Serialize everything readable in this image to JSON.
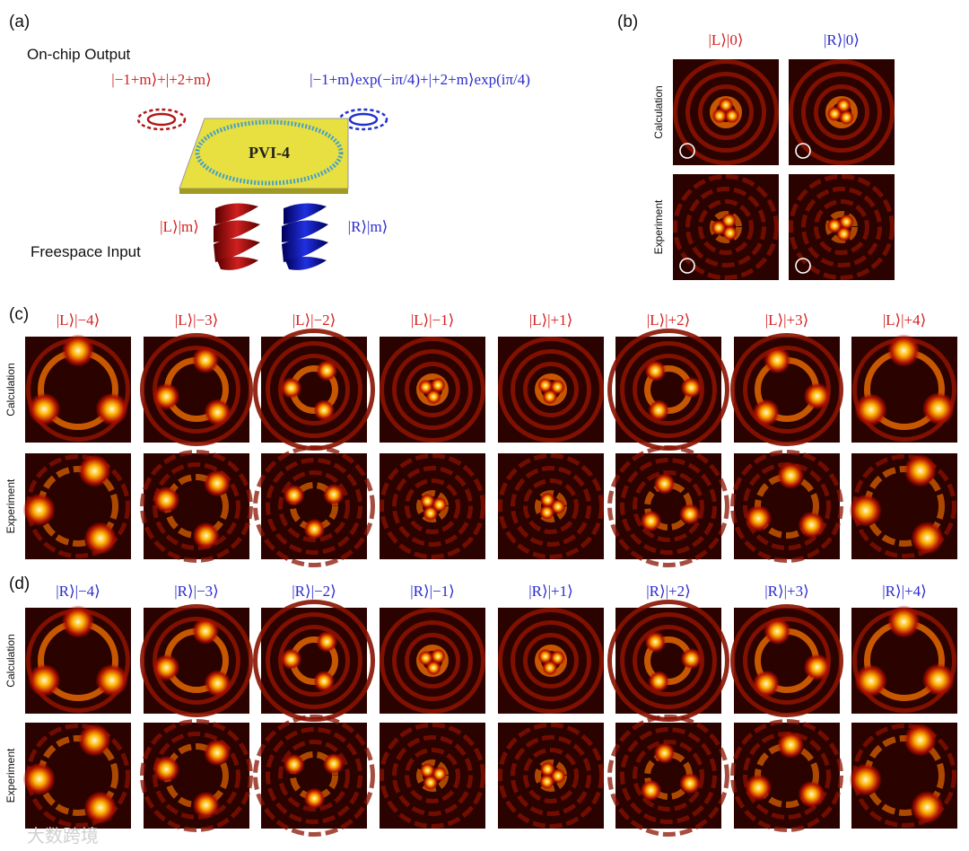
{
  "panels": {
    "a": {
      "label": "(a)",
      "output_title": "On-chip Output",
      "output_left": "|−1+m⟩+|+2+m⟩",
      "output_right": "|−1+m⟩exp(−iπ/4)+|+2+m⟩exp(iπ/4)",
      "chip": "PVI-4",
      "input_title": "Freespace Input",
      "input_left": "|L⟩|m⟩",
      "input_right": "|R⟩|m⟩"
    },
    "b": {
      "label": "(b)",
      "columns": [
        "|L⟩|0⟩",
        "|R⟩|0⟩"
      ],
      "rows": [
        "Calculation",
        "Experiment"
      ]
    },
    "c": {
      "label": "(c)",
      "columns": [
        "|L⟩|−4⟩",
        "|L⟩|−3⟩",
        "|L⟩|−2⟩",
        "|L⟩|−1⟩",
        "|L⟩|+1⟩",
        "|L⟩|+2⟩",
        "|L⟩|+3⟩",
        "|L⟩|+4⟩"
      ],
      "rows": [
        "Calculation",
        "Experiment"
      ]
    },
    "d": {
      "label": "(d)",
      "columns": [
        "|R⟩|−4⟩",
        "|R⟩|−3⟩",
        "|R⟩|−2⟩",
        "|R⟩|−1⟩",
        "|R⟩|+1⟩",
        "|R⟩|+2⟩",
        "|R⟩|+3⟩",
        "|R⟩|+4⟩"
      ],
      "rows": [
        "Calculation",
        "Experiment"
      ]
    }
  },
  "watermark": "大数跨境"
}
